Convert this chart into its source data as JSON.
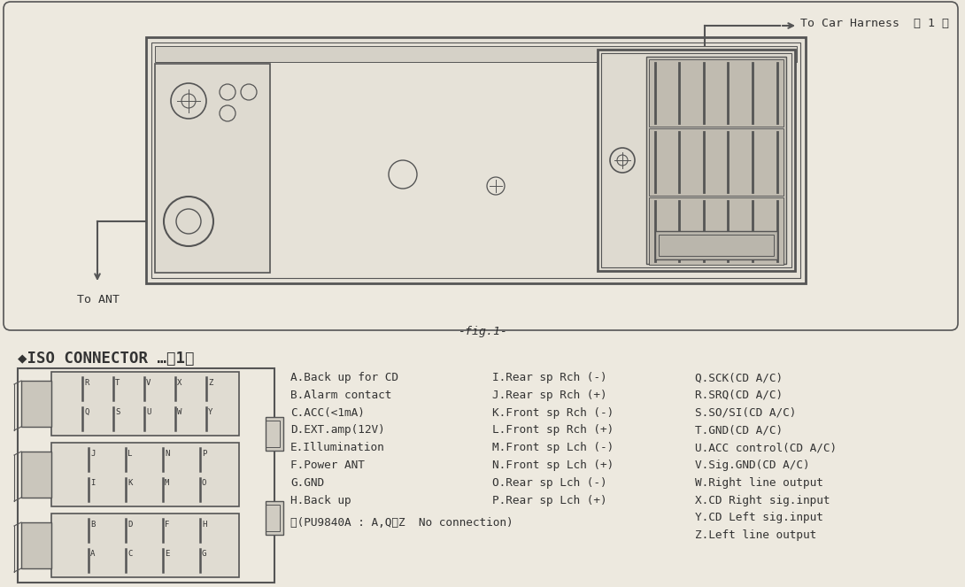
{
  "bg_color": "#ede9df",
  "line_color": "#555555",
  "text_color": "#333333",
  "fig1_label": "-fig.1-",
  "car_harness_label": "To Car Harness  【 1 】",
  "ant_label": "To ANT",
  "pin_labels_col1": [
    "A.Back up for CD",
    "B.Alarm contact",
    "C.ACC(<1mA)",
    "D.EXT.amp(12V)",
    "E.Illumination",
    "F.Power ANT",
    "G.GND",
    "H.Back up"
  ],
  "pin_labels_col2": [
    "I.Rear sp Rch (-)",
    "J.Rear sp Rch (+)",
    "K.Front sp Rch (-)",
    "L.Front sp Rch (+)",
    "M.Front sp Lch (-)",
    "N.Front sp Lch (+)",
    "O.Rear sp Lch (-)",
    "P.Rear sp Lch (+)"
  ],
  "pin_labels_col3": [
    "Q.SCK(CD A/C)",
    "R.SRQ(CD A/C)",
    "S.SO/SI(CD A/C)",
    "T.GND(CD A/C)",
    "U.ACC control(CD A/C)",
    "V.Sig.GND(CD A/C)",
    "W.Right line output",
    "X.CD Right sig.input",
    "Y.CD Left sig.input",
    "Z.Left line output"
  ],
  "note": "※(PU9840A : A,Q～Z  No connection)"
}
